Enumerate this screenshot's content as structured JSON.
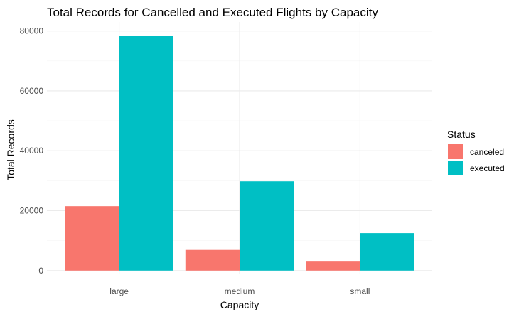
{
  "chart_data": {
    "type": "bar",
    "title": "Total Records for Cancelled and Executed Flights by Capacity",
    "xlabel": "Capacity",
    "ylabel": "Total Records",
    "categories": [
      "large",
      "medium",
      "small"
    ],
    "series": [
      {
        "name": "canceled",
        "color": "#F8766D",
        "values": [
          21500,
          6900,
          3000
        ]
      },
      {
        "name": "executed",
        "color": "#00BFC4",
        "values": [
          78300,
          29800,
          12500
        ]
      }
    ],
    "ylim": [
      -1000,
      83000
    ],
    "yticks": [
      0,
      20000,
      40000,
      60000,
      80000
    ],
    "ytick_labels": [
      "0",
      "20000",
      "40000",
      "60000",
      "80000"
    ],
    "grid": true,
    "legend": {
      "title": "Status",
      "position": "right"
    },
    "colors": {
      "grid_major": "#ebebeb",
      "grid_minor": "#f5f5f5",
      "tick_text": "#4d4d4d"
    }
  }
}
